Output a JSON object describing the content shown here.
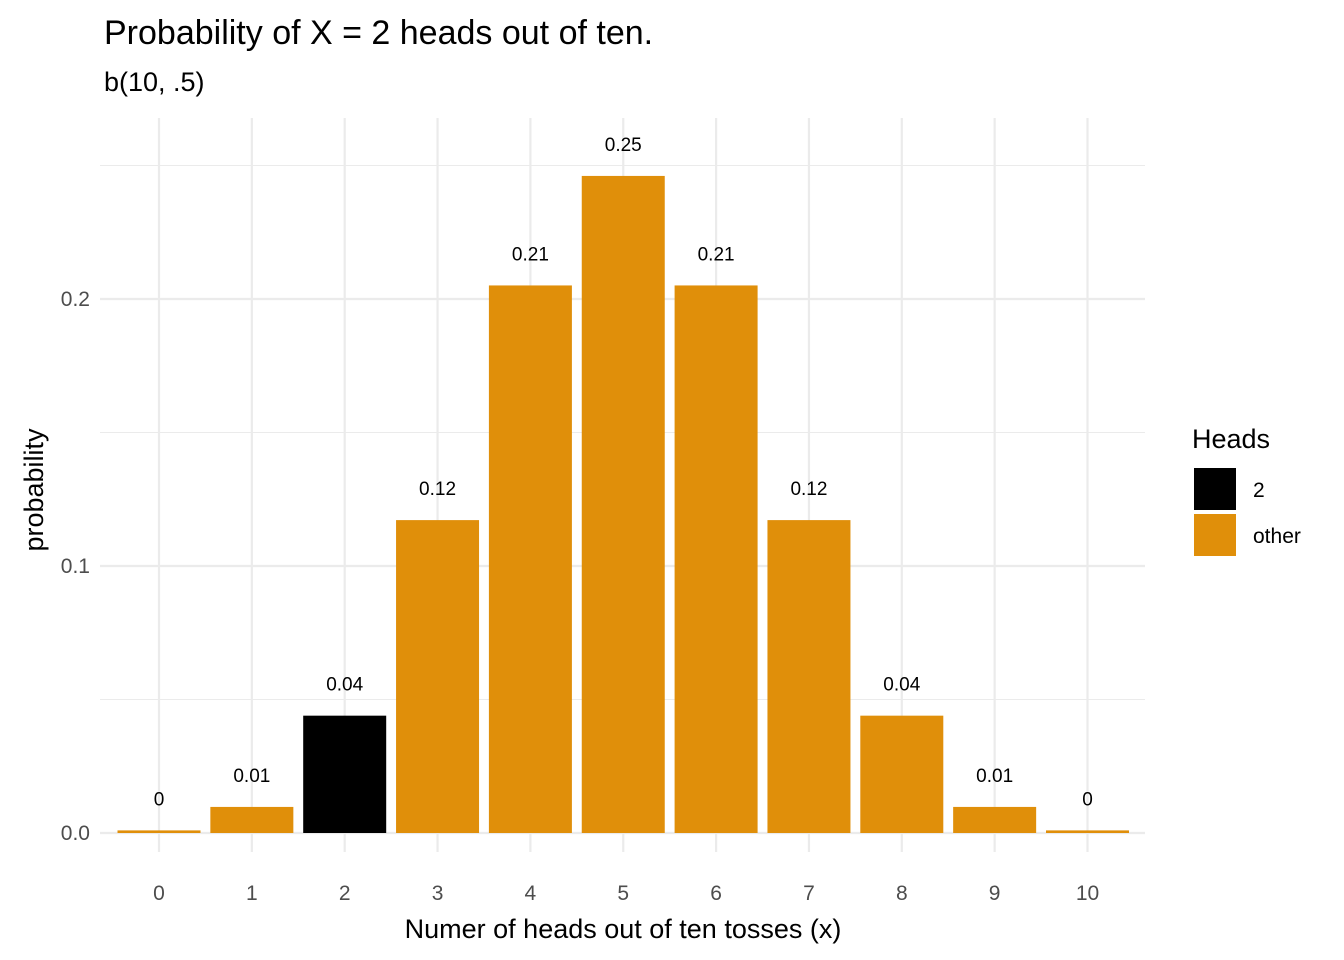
{
  "chart_data": {
    "type": "bar",
    "title": "Probability of X = 2 heads out of ten.",
    "subtitle": "b(10, .5)",
    "xlabel": "Numer of heads out of ten tosses (x)",
    "ylabel": "probability",
    "categories": [
      "0",
      "1",
      "2",
      "3",
      "4",
      "5",
      "6",
      "7",
      "8",
      "9",
      "10"
    ],
    "values": [
      0.000977,
      0.009766,
      0.043945,
      0.117188,
      0.205078,
      0.246094,
      0.205078,
      0.117188,
      0.043945,
      0.009766,
      0.000977
    ],
    "data_labels": [
      "0",
      "0.01",
      "0.04",
      "0.12",
      "0.21",
      "0.25",
      "0.21",
      "0.12",
      "0.04",
      "0.01",
      "0"
    ],
    "groups": [
      "other",
      "other",
      "2",
      "other",
      "other",
      "other",
      "other",
      "other",
      "other",
      "other",
      "other"
    ],
    "ylim": [
      0,
      0.25
    ],
    "y_ticks": [
      0.0,
      0.1,
      0.2
    ],
    "y_tick_labels": [
      "0.0",
      "0.1",
      "0.2"
    ],
    "grid": true,
    "legend": {
      "title": "Heads",
      "position": "right",
      "entries": [
        {
          "label": "2",
          "color": "#000000"
        },
        {
          "label": "other",
          "color": "#E08F0A"
        }
      ]
    }
  }
}
